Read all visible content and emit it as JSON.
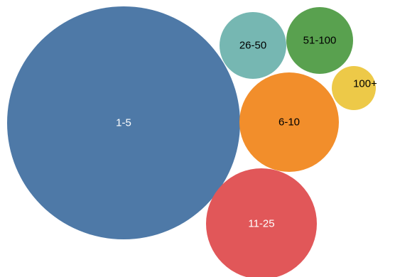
{
  "chart_data": {
    "type": "bubble",
    "title": "",
    "bubbles": [
      {
        "label": "1-5",
        "color": "#4e79a7",
        "label_color": "#ffffff"
      },
      {
        "label": "6-10",
        "color": "#f28e2b",
        "label_color": "#000000"
      },
      {
        "label": "11-25",
        "color": "#e15759",
        "label_color": "#ffffff"
      },
      {
        "label": "26-50",
        "color": "#76b7b2",
        "label_color": "#000000"
      },
      {
        "label": "51-100",
        "color": "#59a14f",
        "label_color": "#000000"
      },
      {
        "label": "100+",
        "color": "#edc948",
        "label_color": "#000000"
      }
    ]
  }
}
